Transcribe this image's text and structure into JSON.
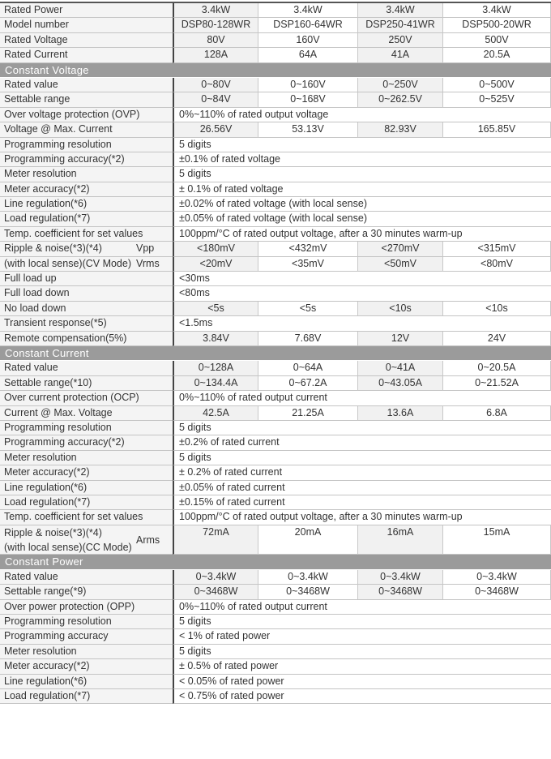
{
  "rows": [
    {
      "type": "vals",
      "label": "Rated Power",
      "values": [
        "3.4kW",
        "3.4kW",
        "3.4kW",
        "3.4kW"
      ]
    },
    {
      "type": "vals",
      "label": "Model number",
      "values": [
        "DSP80-128WR",
        "DSP160-64WR",
        "DSP250-41WR",
        "DSP500-20WR"
      ]
    },
    {
      "type": "vals",
      "label": "Rated Voltage",
      "values": [
        "80V",
        "160V",
        "250V",
        "500V"
      ]
    },
    {
      "type": "vals",
      "label": "Rated Current",
      "values": [
        "128A",
        "64A",
        "41A",
        "20.5A"
      ]
    },
    {
      "type": "section",
      "label": "Constant Voltage"
    },
    {
      "type": "vals",
      "label": "Rated value",
      "values": [
        "0~80V",
        "0~160V",
        "0~250V",
        "0~500V"
      ]
    },
    {
      "type": "vals",
      "label": "Settable range",
      "values": [
        "0~84V",
        "0~168V",
        "0~262.5V",
        "0~525V"
      ]
    },
    {
      "type": "span",
      "label": "Over voltage protection (OVP)",
      "text": "0%~110% of rated output voltage"
    },
    {
      "type": "vals",
      "label": "Voltage @ Max. Current",
      "values": [
        "26.56V",
        "53.13V",
        "82.93V",
        "165.85V"
      ]
    },
    {
      "type": "span",
      "label": "Programming resolution",
      "text": "5 digits"
    },
    {
      "type": "span",
      "label": "Programming accuracy(*2)",
      "text": "±0.1% of rated voltage"
    },
    {
      "type": "span",
      "label": "Meter resolution",
      "text": "5 digits"
    },
    {
      "type": "span",
      "label": "Meter accuracy(*2)",
      "text": "± 0.1% of rated voltage"
    },
    {
      "type": "span",
      "label": "Line regulation(*6)",
      "text": "±0.02% of rated voltage (with local sense)"
    },
    {
      "type": "span",
      "label": "Load regulation(*7)",
      "text": "±0.05% of rated voltage (with local sense)"
    },
    {
      "type": "span",
      "label": "Temp. coefficient for set values",
      "text": "100ppm/°C of rated output voltage, after a 30 minutes warm-up"
    },
    {
      "type": "vals",
      "label": "Ripple & noise(*3)(*4)",
      "sub": "Vpp",
      "values": [
        "<180mV",
        "<432mV",
        "<270mV",
        "<315mV"
      ]
    },
    {
      "type": "vals",
      "label": "(with local sense)(CV Mode)",
      "sub": "Vrms",
      "values": [
        "<20mV",
        "<35mV",
        "<50mV",
        "<80mV"
      ]
    },
    {
      "type": "span",
      "label": "Full load up",
      "text": "<30ms"
    },
    {
      "type": "span",
      "label": "Full load down",
      "text": "<80ms"
    },
    {
      "type": "vals",
      "label": "No load down",
      "values": [
        "<5s",
        "<5s",
        "<10s",
        "<10s"
      ]
    },
    {
      "type": "span",
      "label": "Transient response(*5)",
      "text": "<1.5ms"
    },
    {
      "type": "vals",
      "label": "Remote compensation(5%)",
      "values": [
        "3.84V",
        "7.68V",
        "12V",
        "24V"
      ]
    },
    {
      "type": "section",
      "label": "Constant Current"
    },
    {
      "type": "vals",
      "label": "Rated value",
      "values": [
        "0~128A",
        "0~64A",
        "0~41A",
        "0~20.5A"
      ]
    },
    {
      "type": "vals",
      "label": "Settable range(*10)",
      "values": [
        "0~134.4A",
        "0~67.2A",
        "0~43.05A",
        "0~21.52A"
      ]
    },
    {
      "type": "span",
      "label": "Over current protection (OCP)",
      "text": "0%~110% of rated output current"
    },
    {
      "type": "vals",
      "label": "Current @ Max. Voltage",
      "values": [
        "42.5A",
        "21.25A",
        "13.6A",
        "6.8A"
      ]
    },
    {
      "type": "span",
      "label": "Programming resolution",
      "text": "5 digits"
    },
    {
      "type": "span",
      "label": "Programming accuracy(*2)",
      "text": "±0.2% of rated current"
    },
    {
      "type": "span",
      "label": "Meter resolution",
      "text": "5 digits"
    },
    {
      "type": "span",
      "label": "Meter accuracy(*2)",
      "text": "± 0.2% of rated current"
    },
    {
      "type": "span",
      "label": "Line regulation(*6)",
      "text": "±0.05% of rated current"
    },
    {
      "type": "span",
      "label": "Load regulation(*7)",
      "text": "±0.15% of rated current"
    },
    {
      "type": "span",
      "label": "Temp. coefficient for set values",
      "text": "100ppm/°C of rated output voltage, after a 30 minutes warm-up"
    },
    {
      "type": "double",
      "label": "Ripple & noise(*3)(*4)",
      "label2": "(with local sense)(CC Mode)",
      "sub": "Arms",
      "values": [
        "72mA",
        "20mA",
        "16mA",
        "15mA"
      ]
    },
    {
      "type": "section",
      "label": "Constant Power"
    },
    {
      "type": "vals",
      "label": "Rated value",
      "values": [
        "0~3.4kW",
        "0~3.4kW",
        "0~3.4kW",
        "0~3.4kW"
      ]
    },
    {
      "type": "vals",
      "label": "Settable range(*9)",
      "values": [
        "0~3468W",
        "0~3468W",
        "0~3468W",
        "0~3468W"
      ]
    },
    {
      "type": "span",
      "label": "Over power protection (OPP)",
      "text": "0%~110% of rated output current"
    },
    {
      "type": "span",
      "label": "Programming resolution",
      "text": "5 digits"
    },
    {
      "type": "span",
      "label": "Programming accuracy",
      "text": "< 1% of rated power"
    },
    {
      "type": "span",
      "label": "Meter resolution",
      "text": "5 digits"
    },
    {
      "type": "span",
      "label": "Meter accuracy(*2)",
      "text": "± 0.5% of rated power"
    },
    {
      "type": "span",
      "label": "Line regulation(*6)",
      "text": "< 0.05% of rated power"
    },
    {
      "type": "span",
      "label": "Load regulation(*7)",
      "text": "< 0.75% of rated power"
    }
  ]
}
